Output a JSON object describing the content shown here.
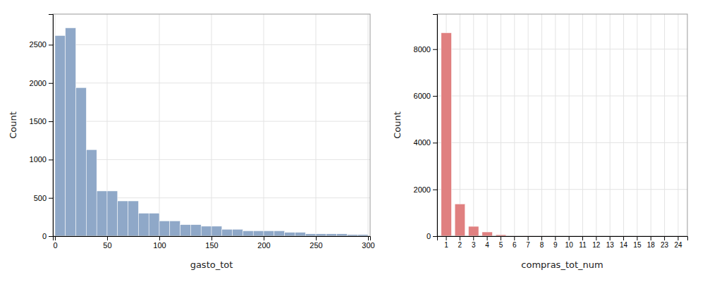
{
  "chart_data": [
    {
      "type": "histogram",
      "bins": [
        0,
        10,
        20,
        30,
        40,
        50,
        60,
        70,
        80,
        90,
        100,
        110,
        120,
        130,
        140,
        150,
        160,
        170,
        180,
        190,
        200,
        210,
        220,
        230,
        240,
        250,
        260,
        270,
        280,
        290,
        300
      ],
      "values": [
        2620,
        2720,
        1940,
        1130,
        590,
        590,
        460,
        460,
        300,
        300,
        200,
        200,
        150,
        150,
        130,
        130,
        90,
        90,
        70,
        70,
        70,
        70,
        50,
        50,
        30,
        30,
        30,
        30,
        20,
        20
      ],
      "color": "#8fa8c8",
      "xlabel": "gasto_tot",
      "ylabel": "Count",
      "xlim": [
        -2,
        302
      ],
      "ylim": [
        0,
        2900
      ],
      "xticks": [
        0,
        50,
        100,
        150,
        200,
        250,
        300
      ],
      "yticks": [
        0,
        500,
        1000,
        1500,
        2000,
        2500
      ],
      "grid": true
    },
    {
      "type": "bar",
      "categories": [
        1,
        2,
        3,
        4,
        5,
        6,
        7,
        8,
        9,
        10,
        11,
        12,
        13,
        14,
        15,
        18,
        23,
        24
      ],
      "values": [
        8700,
        1380,
        420,
        180,
        60,
        15,
        5,
        3,
        2,
        1,
        1,
        1,
        1,
        1,
        1,
        1,
        1,
        1
      ],
      "color": "#e08080",
      "xlabel": "compras_tot_num",
      "ylabel": "Count",
      "ylim": [
        0,
        9500
      ],
      "yticks": [
        0,
        2000,
        4000,
        6000,
        8000
      ],
      "grid": true
    }
  ]
}
